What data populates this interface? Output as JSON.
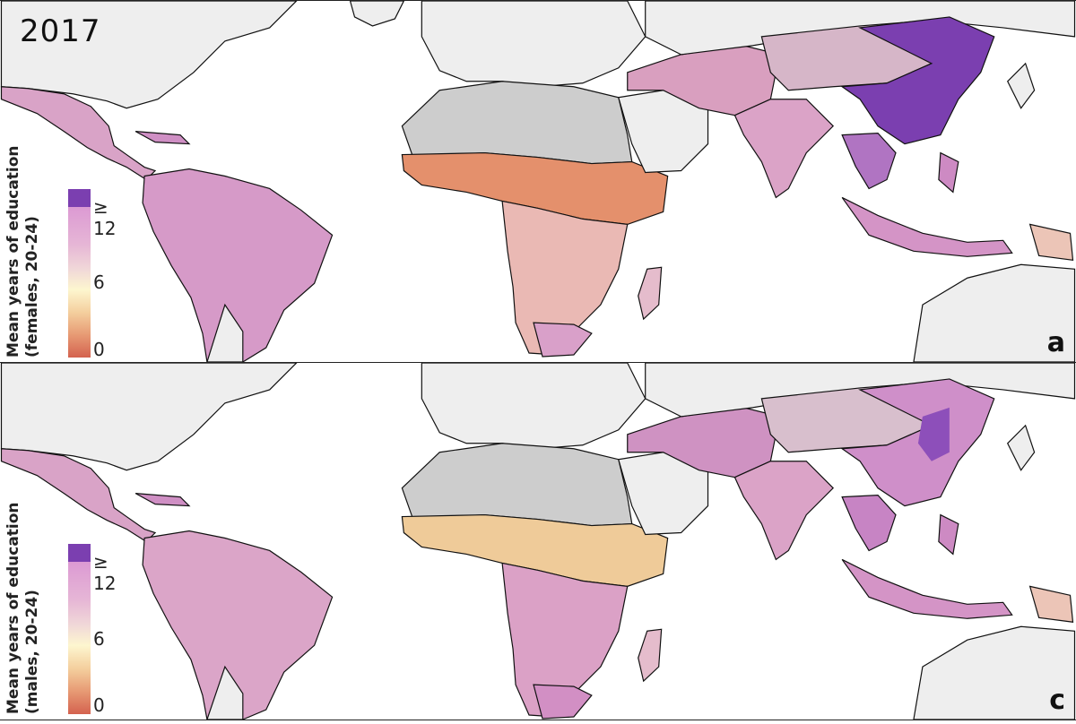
{
  "year": "2017",
  "panels": [
    {
      "letter": "a",
      "legend_title_line1": "Mean years of education",
      "legend_title_line2": "(females, 20-24)",
      "ticks": [
        "≥ 12",
        "6",
        "0"
      ]
    },
    {
      "letter": "c",
      "legend_title_line1": "Mean years of education",
      "legend_title_line2": "(males, 20-24)",
      "ticks": [
        "≥ 12",
        "6",
        "0"
      ]
    }
  ],
  "colors": {
    "no_data_land": "#cdcdcd",
    "excluded_land": "#eeeeee",
    "scale_max": "#7b3fb0",
    "scale_high": "#dc9ad3",
    "scale_mid": "#fdf6cf",
    "scale_low": "#d4624f"
  }
}
